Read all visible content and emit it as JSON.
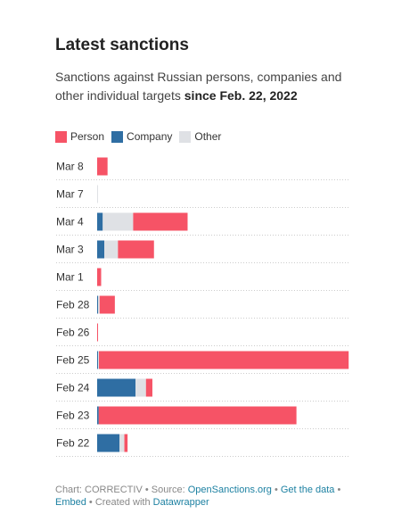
{
  "header": {
    "title": "Latest sanctions",
    "subtitle_prefix": "Sanctions against Russian persons, companies and other individual targets ",
    "subtitle_bold": "since Feb. 22, 2022"
  },
  "legend": [
    {
      "label": "Person",
      "color": "#f65366"
    },
    {
      "label": "Company",
      "color": "#2f6ea3"
    },
    {
      "label": "Other",
      "color": "#dfe1e5"
    }
  ],
  "chart_data": {
    "type": "bar",
    "orientation": "horizontal",
    "stacked": true,
    "categories": [
      "Mar 8",
      "Mar 7",
      "Mar 4",
      "Mar 3",
      "Mar 1",
      "Feb 28",
      "Feb 26",
      "Feb 25",
      "Feb 24",
      "Feb 23",
      "Feb 22"
    ],
    "series": [
      {
        "name": "Company",
        "color": "#2f6ea3",
        "values": [
          0,
          0,
          7,
          9,
          0,
          1,
          0,
          1,
          48,
          2,
          28
        ]
      },
      {
        "name": "Other",
        "color": "#dfe1e5",
        "values": [
          0,
          1,
          38,
          17,
          0,
          2,
          0,
          1,
          13,
          0,
          6
        ]
      },
      {
        "name": "Person",
        "color": "#f65366",
        "values": [
          13,
          0,
          68,
          45,
          5,
          19,
          1,
          312,
          8,
          247,
          4
        ]
      }
    ],
    "xlim": [
      0,
      314
    ],
    "grid": false,
    "legend_position": "top-left"
  },
  "footer": {
    "prefix": "Chart: CORRECTIV • Source: ",
    "source_link": "OpenSanctions.org",
    "sep1": " • ",
    "get_data": "Get the data",
    "sep2": " • ",
    "embed": "Embed",
    "created": " • Created with ",
    "datawrapper": "Datawrapper"
  }
}
